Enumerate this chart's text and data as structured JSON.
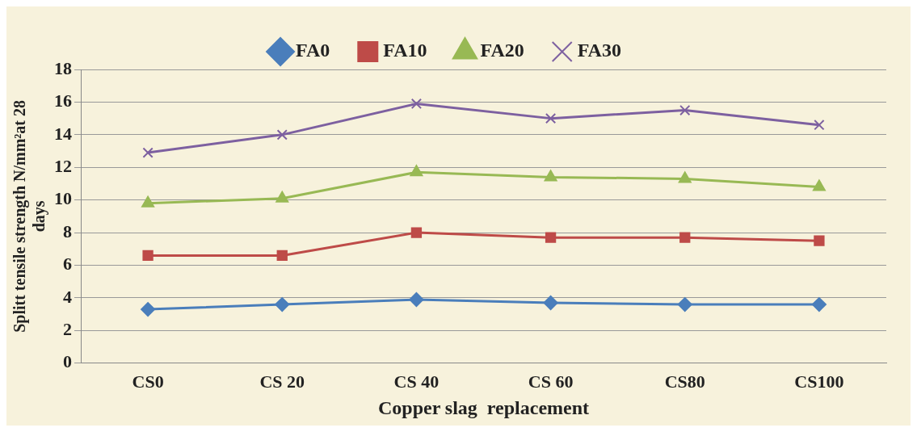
{
  "chart_data": {
    "type": "line",
    "xlabel": "Copper slag  replacement",
    "ylabel": "Splitt tensile strength N/mm²at 28 days",
    "categories": [
      "CS0",
      "CS 20",
      "CS 40",
      "CS 60",
      "CS80",
      "CS100"
    ],
    "series": [
      {
        "name": "FA0",
        "color": "#4a7ebb",
        "marker": "diamond",
        "values": [
          3.3,
          3.6,
          3.9,
          3.7,
          3.6,
          3.6
        ]
      },
      {
        "name": "FA10",
        "color": "#be4b48",
        "marker": "square",
        "values": [
          6.6,
          6.6,
          8.0,
          7.7,
          7.7,
          7.5
        ]
      },
      {
        "name": "FA20",
        "color": "#98b954",
        "marker": "triangle",
        "values": [
          9.8,
          10.1,
          11.7,
          11.4,
          11.3,
          10.8
        ]
      },
      {
        "name": "FA30",
        "color": "#7d60a0",
        "marker": "cross",
        "values": [
          12.9,
          14.0,
          15.9,
          15.0,
          15.5,
          14.6
        ]
      }
    ],
    "ylim": [
      0,
      18
    ],
    "yticks": [
      0,
      2,
      4,
      6,
      8,
      10,
      12,
      14,
      16,
      18
    ],
    "grid": "y",
    "legend": "top",
    "line_style": "solid"
  }
}
